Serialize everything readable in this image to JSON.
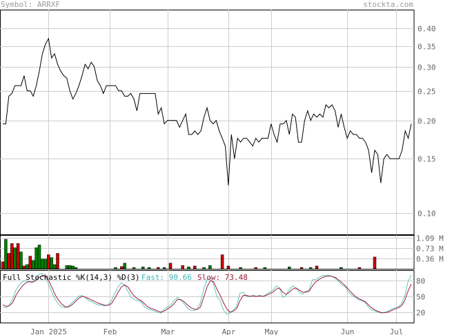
{
  "header": {
    "symbol_label": "Symbol: ARRXF",
    "site": "stockta.com"
  },
  "colors": {
    "price_line": "#000000",
    "grid": "#cccccc",
    "axis_text": "#666666",
    "vol_up": "#008000",
    "vol_down": "#cc0000",
    "fast_line": "#5cc6c6",
    "slow_line": "#a01a3a",
    "fast_text": "#3cb4b4",
    "slow_text": "#a01a3a"
  },
  "chart_data": [
    {
      "type": "line",
      "name": "price",
      "title": "",
      "y_scale": "log",
      "ylim": [
        0.085,
        0.46
      ],
      "y_ticks": [
        "0.40",
        "0.35",
        "0.30",
        "0.25",
        "0.20",
        "0.15",
        "0.10"
      ],
      "x_ticks": [
        "Jan 2025",
        "Feb",
        "Mar",
        "Apr",
        "May",
        "Jun",
        "Jul"
      ],
      "grid": true,
      "values": [
        0.195,
        0.195,
        0.24,
        0.245,
        0.26,
        0.26,
        0.26,
        0.28,
        0.25,
        0.25,
        0.24,
        0.26,
        0.29,
        0.33,
        0.355,
        0.37,
        0.32,
        0.33,
        0.305,
        0.29,
        0.28,
        0.275,
        0.25,
        0.235,
        0.245,
        0.26,
        0.28,
        0.305,
        0.295,
        0.31,
        0.3,
        0.27,
        0.26,
        0.245,
        0.26,
        0.26,
        0.26,
        0.26,
        0.25,
        0.25,
        0.24,
        0.24,
        0.245,
        0.235,
        0.215,
        0.245,
        0.245,
        0.245,
        0.245,
        0.245,
        0.245,
        0.21,
        0.22,
        0.195,
        0.2,
        0.2,
        0.2,
        0.2,
        0.19,
        0.2,
        0.21,
        0.18,
        0.18,
        0.185,
        0.18,
        0.185,
        0.205,
        0.22,
        0.2,
        0.195,
        0.2,
        0.185,
        0.175,
        0.165,
        0.123,
        0.18,
        0.15,
        0.175,
        0.17,
        0.175,
        0.175,
        0.17,
        0.165,
        0.175,
        0.17,
        0.175,
        0.175,
        0.175,
        0.195,
        0.18,
        0.17,
        0.195,
        0.195,
        0.2,
        0.18,
        0.21,
        0.205,
        0.17,
        0.17,
        0.2,
        0.215,
        0.2,
        0.21,
        0.205,
        0.21,
        0.205,
        0.225,
        0.22,
        0.225,
        0.215,
        0.19,
        0.21,
        0.19,
        0.175,
        0.185,
        0.18,
        0.18,
        0.175,
        0.175,
        0.17,
        0.16,
        0.135,
        0.16,
        0.155,
        0.125,
        0.15,
        0.155,
        0.15,
        0.15,
        0.15,
        0.15,
        0.16,
        0.185,
        0.175,
        0.195
      ]
    },
    {
      "type": "bar",
      "name": "volume",
      "y_ticks": [
        "1.09 M",
        "0.73 M",
        "0.36 M"
      ],
      "ylim": [
        0,
        1.2
      ],
      "units": "millions",
      "bars": [
        {
          "i": 0,
          "v": 0.25,
          "up": false
        },
        {
          "i": 1,
          "v": 1.05,
          "up": true
        },
        {
          "i": 2,
          "v": 0.55,
          "up": false
        },
        {
          "i": 3,
          "v": 0.9,
          "up": false
        },
        {
          "i": 4,
          "v": 0.75,
          "up": true
        },
        {
          "i": 5,
          "v": 0.9,
          "up": false
        },
        {
          "i": 6,
          "v": 0.6,
          "up": true
        },
        {
          "i": 7,
          "v": 0.1,
          "up": false
        },
        {
          "i": 8,
          "v": 0.15,
          "up": true
        },
        {
          "i": 9,
          "v": 0.45,
          "up": false
        },
        {
          "i": 10,
          "v": 0.3,
          "up": true
        },
        {
          "i": 11,
          "v": 0.75,
          "up": true
        },
        {
          "i": 12,
          "v": 0.85,
          "up": true
        },
        {
          "i": 13,
          "v": 0.35,
          "up": true
        },
        {
          "i": 14,
          "v": 0.35,
          "up": true
        },
        {
          "i": 15,
          "v": 0.5,
          "up": false
        },
        {
          "i": 16,
          "v": 0.4,
          "up": true
        },
        {
          "i": 17,
          "v": 0.15,
          "up": true
        },
        {
          "i": 18,
          "v": 0.55,
          "up": false
        },
        {
          "i": 21,
          "v": 0.12,
          "up": true
        },
        {
          "i": 22,
          "v": 0.12,
          "up": true
        },
        {
          "i": 23,
          "v": 0.1,
          "up": true
        },
        {
          "i": 24,
          "v": 0.05,
          "up": true
        },
        {
          "i": 37,
          "v": 0.05,
          "up": true
        },
        {
          "i": 39,
          "v": 0.08,
          "up": false
        },
        {
          "i": 40,
          "v": 0.2,
          "up": true
        },
        {
          "i": 43,
          "v": 0.05,
          "up": true
        },
        {
          "i": 46,
          "v": 0.07,
          "up": true
        },
        {
          "i": 48,
          "v": 0.05,
          "up": true
        },
        {
          "i": 51,
          "v": 0.05,
          "up": false
        },
        {
          "i": 53,
          "v": 0.05,
          "up": true
        },
        {
          "i": 55,
          "v": 0.2,
          "up": false
        },
        {
          "i": 59,
          "v": 0.12,
          "up": false
        },
        {
          "i": 61,
          "v": 0.07,
          "up": true
        },
        {
          "i": 63,
          "v": 0.1,
          "up": false
        },
        {
          "i": 66,
          "v": 0.05,
          "up": true
        },
        {
          "i": 68,
          "v": 0.12,
          "up": true
        },
        {
          "i": 72,
          "v": 0.5,
          "up": false
        },
        {
          "i": 74,
          "v": 0.1,
          "up": false
        },
        {
          "i": 78,
          "v": 0.05,
          "up": true
        },
        {
          "i": 83,
          "v": 0.05,
          "up": false
        },
        {
          "i": 86,
          "v": 0.05,
          "up": true
        },
        {
          "i": 94,
          "v": 0.07,
          "up": true
        },
        {
          "i": 98,
          "v": 0.05,
          "up": false
        },
        {
          "i": 101,
          "v": 0.05,
          "up": true
        },
        {
          "i": 103,
          "v": 0.1,
          "up": false
        },
        {
          "i": 111,
          "v": 0.05,
          "up": true
        },
        {
          "i": 117,
          "v": 0.05,
          "up": false
        },
        {
          "i": 122,
          "v": 0.42,
          "up": false
        }
      ]
    },
    {
      "type": "line",
      "name": "stochastic",
      "label": "Full Stochastic %K(14,3) %D(3)",
      "fast_label": "Fast: 90.66",
      "slow_label": "Slow: 73.48",
      "ylim": [
        0,
        100
      ],
      "y_ticks": [
        "80",
        "50",
        "20"
      ],
      "fast": [
        30,
        28,
        34,
        45,
        62,
        72,
        78,
        80,
        78,
        78,
        82,
        92,
        94,
        86,
        72,
        56,
        44,
        34,
        30,
        28,
        32,
        38,
        44,
        50,
        52,
        48,
        42,
        40,
        36,
        34,
        33,
        32,
        34,
        42,
        56,
        68,
        76,
        72,
        60,
        48,
        44,
        42,
        40,
        30,
        26,
        24,
        22,
        20,
        18,
        26,
        30,
        34,
        42,
        48,
        44,
        36,
        28,
        24,
        23,
        26,
        38,
        64,
        82,
        86,
        72,
        50,
        42,
        24,
        16,
        18,
        24,
        32,
        56,
        58,
        50,
        50,
        52,
        50,
        52,
        50,
        54,
        58,
        62,
        70,
        66,
        48,
        52,
        64,
        70,
        66,
        58,
        54,
        60,
        62,
        82,
        82,
        86,
        90,
        90,
        90,
        88,
        84,
        78,
        72,
        68,
        58,
        52,
        48,
        44,
        42,
        38,
        30,
        24,
        22,
        20,
        18,
        20,
        22,
        26,
        28,
        30,
        36,
        50,
        78,
        90.66
      ],
      "slow": [
        34,
        31,
        32,
        38,
        52,
        62,
        70,
        76,
        78,
        77,
        80,
        86,
        90,
        88,
        80,
        66,
        52,
        42,
        35,
        30,
        30,
        34,
        40,
        46,
        50,
        49,
        46,
        43,
        40,
        37,
        35,
        33,
        33,
        36,
        46,
        58,
        68,
        72,
        68,
        58,
        50,
        45,
        42,
        36,
        30,
        27,
        25,
        22,
        20,
        22,
        26,
        30,
        36,
        44,
        44,
        40,
        34,
        29,
        26,
        25,
        30,
        48,
        68,
        80,
        78,
        64,
        52,
        38,
        26,
        20,
        22,
        27,
        42,
        52,
        52,
        50,
        51,
        50,
        51,
        50,
        52,
        55,
        58,
        64,
        66,
        58,
        54,
        58,
        64,
        66,
        62,
        58,
        58,
        60,
        70,
        78,
        82,
        86,
        88,
        89,
        88,
        86,
        81,
        76,
        70,
        63,
        56,
        50,
        46,
        43,
        40,
        34,
        28,
        24,
        21,
        19,
        19,
        20,
        23,
        26,
        28,
        32,
        42,
        60,
        73.48
      ]
    }
  ]
}
